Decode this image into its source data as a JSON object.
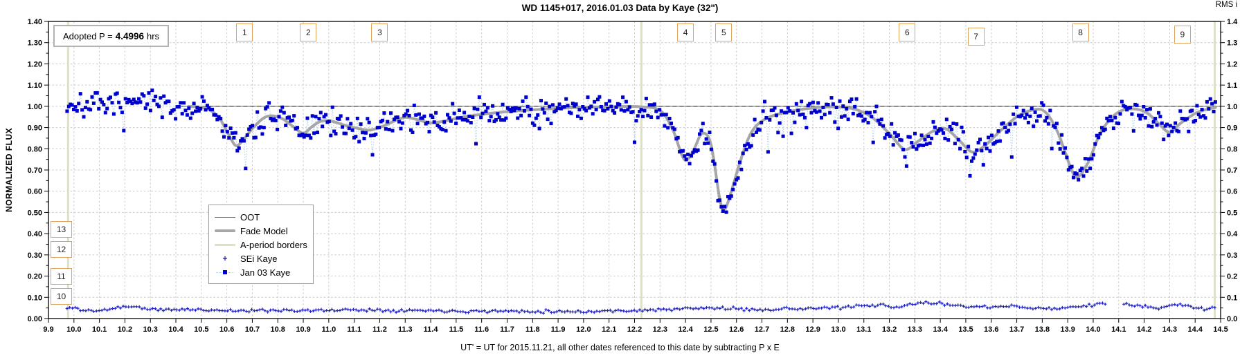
{
  "chart_data": {
    "type": "scatter",
    "title": "WD 1145+017, 2016.01.03 Data by Kaye (32\")",
    "xlabel": "UT' = UT for 2015.11.21, all other dates referenced to this date by subtracting P x E",
    "ylabel": "NORMALIZED FLUX",
    "y2label": "RMS i",
    "x_range": [
      9.9,
      14.5
    ],
    "y_range": [
      0.0,
      1.4
    ],
    "grid": "dashed",
    "legend_position": "inside-left-middle",
    "ticks": {
      "x_labels": [
        "9.9",
        "10.0",
        "10.1",
        "10.2",
        "10.3",
        "10.4",
        "10.5",
        "10.6",
        "10.7",
        "10.8",
        "10.9",
        "11.0",
        "11.1",
        "11.2",
        "11.3",
        "11.4",
        "11.5",
        "11.6",
        "11.7",
        "11.8",
        "11.9",
        "12.0",
        "12.1",
        "12.2",
        "12.3",
        "12.4",
        "12.5",
        "12.6",
        "12.7",
        "12.8",
        "12.9",
        "13.0",
        "13.1",
        "13.2",
        "13.3",
        "13.4",
        "13.5",
        "13.6",
        "13.7",
        "13.8",
        "13.9",
        "14.0",
        "14.1",
        "14.2",
        "14.3",
        "14.4",
        "14.5"
      ],
      "y_left_labels": [
        "0.00",
        "0.10",
        "0.20",
        "0.30",
        "0.40",
        "0.50",
        "0.60",
        "0.70",
        "0.80",
        "0.90",
        "1.00",
        "1.10",
        "1.20",
        "1.30",
        "1.40"
      ],
      "y_right_labels": [
        "0.0",
        "0.1",
        "0.2",
        "0.3",
        "0.4",
        "0.5",
        "0.6",
        "0.7",
        "0.8",
        "0.9",
        "1.0",
        "1.1",
        "1.2",
        "1.3",
        "1.4"
      ]
    },
    "series": [
      {
        "name": "OOT",
        "type": "line",
        "color": "#8c8c8c",
        "overlay_dash_color": "#3d3d3d",
        "points": [
          [
            10.42,
            1.0
          ],
          [
            14.5,
            1.0
          ]
        ]
      },
      {
        "name": "Fade Model",
        "type": "smooth-line",
        "color": "#a6a6a6",
        "width": 4,
        "points": [
          [
            10.45,
            1.0
          ],
          [
            10.52,
            0.99
          ],
          [
            10.57,
            0.945
          ],
          [
            10.61,
            0.86
          ],
          [
            10.635,
            0.815
          ],
          [
            10.66,
            0.835
          ],
          [
            10.7,
            0.895
          ],
          [
            10.745,
            0.945
          ],
          [
            10.78,
            0.955
          ],
          [
            10.82,
            0.94
          ],
          [
            10.86,
            0.905
          ],
          [
            10.9,
            0.873
          ],
          [
            10.935,
            0.905
          ],
          [
            10.97,
            0.93
          ],
          [
            11.01,
            0.93
          ],
          [
            11.06,
            0.912
          ],
          [
            11.11,
            0.897
          ],
          [
            11.16,
            0.888
          ],
          [
            11.21,
            0.905
          ],
          [
            11.26,
            0.932
          ],
          [
            11.3,
            0.948
          ],
          [
            11.345,
            0.938
          ],
          [
            11.4,
            0.922
          ],
          [
            11.46,
            0.932
          ],
          [
            11.52,
            0.948
          ],
          [
            11.6,
            0.962
          ],
          [
            11.7,
            0.975
          ],
          [
            11.82,
            0.985
          ],
          [
            11.95,
            0.993
          ],
          [
            12.1,
            0.998
          ],
          [
            12.22,
            0.998
          ],
          [
            12.3,
            0.98
          ],
          [
            12.35,
            0.89
          ],
          [
            12.395,
            0.75
          ],
          [
            12.43,
            0.79
          ],
          [
            12.465,
            0.872
          ],
          [
            12.5,
            0.82
          ],
          [
            12.535,
            0.56
          ],
          [
            12.555,
            0.518
          ],
          [
            12.58,
            0.6
          ],
          [
            12.62,
            0.76
          ],
          [
            12.66,
            0.88
          ],
          [
            12.71,
            0.938
          ],
          [
            12.78,
            0.968
          ],
          [
            12.87,
            0.988
          ],
          [
            12.97,
            0.998
          ],
          [
            13.06,
            0.988
          ],
          [
            13.13,
            0.95
          ],
          [
            13.2,
            0.872
          ],
          [
            13.26,
            0.797
          ],
          [
            13.31,
            0.833
          ],
          [
            13.37,
            0.882
          ],
          [
            13.42,
            0.895
          ],
          [
            13.47,
            0.845
          ],
          [
            13.525,
            0.785
          ],
          [
            13.575,
            0.815
          ],
          [
            13.63,
            0.878
          ],
          [
            13.7,
            0.95
          ],
          [
            13.76,
            0.982
          ],
          [
            13.81,
            0.975
          ],
          [
            13.86,
            0.88
          ],
          [
            13.915,
            0.7
          ],
          [
            13.94,
            0.668
          ],
          [
            13.98,
            0.735
          ],
          [
            14.03,
            0.878
          ],
          [
            14.09,
            0.965
          ],
          [
            14.15,
            0.988
          ],
          [
            14.21,
            0.97
          ],
          [
            14.26,
            0.915
          ],
          [
            14.3,
            0.878
          ],
          [
            14.345,
            0.922
          ],
          [
            14.41,
            0.972
          ],
          [
            14.48,
            0.995
          ]
        ]
      },
      {
        "name": "A-period borders",
        "type": "vlines",
        "color": "#dde3bd",
        "width": 3,
        "x": [
          9.977,
          12.227,
          14.477
        ]
      },
      {
        "name": "SEi Kaye",
        "type": "scatter-plus",
        "color": "#2020bf",
        "connector_color": "#8093d8",
        "noise": {
          "seed": 11,
          "sigma": 0.0035,
          "step": 0.0105
        },
        "x_start": 9.973,
        "x_end": 14.48,
        "gaps": [
          [
            14.055,
            14.115
          ]
        ],
        "anchors": [
          [
            9.973,
            0.046
          ],
          [
            10.0,
            0.052
          ],
          [
            10.04,
            0.038
          ],
          [
            10.1,
            0.036
          ],
          [
            10.16,
            0.05
          ],
          [
            10.21,
            0.058
          ],
          [
            10.27,
            0.05
          ],
          [
            10.33,
            0.04
          ],
          [
            10.42,
            0.043
          ],
          [
            10.55,
            0.04
          ],
          [
            10.68,
            0.036
          ],
          [
            10.8,
            0.04
          ],
          [
            10.95,
            0.037
          ],
          [
            11.1,
            0.042
          ],
          [
            11.25,
            0.039
          ],
          [
            11.4,
            0.038
          ],
          [
            11.55,
            0.035
          ],
          [
            11.7,
            0.035
          ],
          [
            11.85,
            0.034
          ],
          [
            12.0,
            0.033
          ],
          [
            12.15,
            0.037
          ],
          [
            12.3,
            0.041
          ],
          [
            12.42,
            0.047
          ],
          [
            12.52,
            0.05
          ],
          [
            12.65,
            0.042
          ],
          [
            12.8,
            0.046
          ],
          [
            12.95,
            0.049
          ],
          [
            13.1,
            0.058
          ],
          [
            13.17,
            0.063
          ],
          [
            13.22,
            0.05
          ],
          [
            13.3,
            0.07
          ],
          [
            13.35,
            0.076
          ],
          [
            13.42,
            0.066
          ],
          [
            13.5,
            0.06
          ],
          [
            13.6,
            0.052
          ],
          [
            13.7,
            0.058
          ],
          [
            13.8,
            0.046
          ],
          [
            13.9,
            0.051
          ],
          [
            13.97,
            0.06
          ],
          [
            14.02,
            0.07
          ],
          [
            14.05,
            0.067
          ],
          [
            14.12,
            0.062
          ],
          [
            14.17,
            0.064
          ],
          [
            14.23,
            0.051
          ],
          [
            14.28,
            0.05
          ],
          [
            14.32,
            0.068
          ],
          [
            14.36,
            0.06
          ],
          [
            14.41,
            0.05
          ],
          [
            14.45,
            0.047
          ],
          [
            14.48,
            0.052
          ]
        ]
      },
      {
        "name": "Jan 03 Kaye",
        "type": "scatter-square",
        "color": "#0000cd",
        "connector_color": "#aecbea",
        "noise": {
          "seed": 7,
          "sigma": 0.031,
          "step": 0.00655,
          "outlier_p": 0.028
        },
        "x_start": 9.973,
        "x_end": 14.48,
        "y_clamp": [
          0.43,
          1.135
        ],
        "center_anchors": [
          [
            9.973,
            1.005
          ],
          [
            10.03,
            1.012
          ],
          [
            10.1,
            0.998
          ],
          [
            10.17,
            1.012
          ],
          [
            10.25,
            1.006
          ],
          [
            10.33,
            1.01
          ],
          [
            10.4,
            1.0
          ],
          [
            10.45,
            1.0
          ],
          [
            10.52,
            0.99
          ],
          [
            10.57,
            0.945
          ],
          [
            10.61,
            0.86
          ],
          [
            10.635,
            0.815
          ],
          [
            10.66,
            0.835
          ],
          [
            10.7,
            0.895
          ],
          [
            10.745,
            0.945
          ],
          [
            10.78,
            0.955
          ],
          [
            10.82,
            0.94
          ],
          [
            10.86,
            0.905
          ],
          [
            10.9,
            0.873
          ],
          [
            10.935,
            0.905
          ],
          [
            10.97,
            0.93
          ],
          [
            11.01,
            0.93
          ],
          [
            11.06,
            0.912
          ],
          [
            11.11,
            0.897
          ],
          [
            11.16,
            0.888
          ],
          [
            11.21,
            0.905
          ],
          [
            11.26,
            0.932
          ],
          [
            11.3,
            0.948
          ],
          [
            11.345,
            0.938
          ],
          [
            11.4,
            0.922
          ],
          [
            11.46,
            0.932
          ],
          [
            11.52,
            0.948
          ],
          [
            11.6,
            0.962
          ],
          [
            11.7,
            0.975
          ],
          [
            11.82,
            0.985
          ],
          [
            11.95,
            0.993
          ],
          [
            12.1,
            0.998
          ],
          [
            12.22,
            0.998
          ],
          [
            12.3,
            0.98
          ],
          [
            12.35,
            0.89
          ],
          [
            12.395,
            0.75
          ],
          [
            12.43,
            0.79
          ],
          [
            12.465,
            0.872
          ],
          [
            12.5,
            0.82
          ],
          [
            12.535,
            0.56
          ],
          [
            12.555,
            0.518
          ],
          [
            12.58,
            0.6
          ],
          [
            12.62,
            0.76
          ],
          [
            12.66,
            0.88
          ],
          [
            12.71,
            0.938
          ],
          [
            12.78,
            0.968
          ],
          [
            12.87,
            0.988
          ],
          [
            12.97,
            0.998
          ],
          [
            13.06,
            0.988
          ],
          [
            13.13,
            0.95
          ],
          [
            13.2,
            0.872
          ],
          [
            13.26,
            0.797
          ],
          [
            13.31,
            0.833
          ],
          [
            13.37,
            0.882
          ],
          [
            13.42,
            0.895
          ],
          [
            13.47,
            0.845
          ],
          [
            13.525,
            0.785
          ],
          [
            13.575,
            0.815
          ],
          [
            13.63,
            0.878
          ],
          [
            13.7,
            0.95
          ],
          [
            13.76,
            0.982
          ],
          [
            13.81,
            0.975
          ],
          [
            13.86,
            0.88
          ],
          [
            13.915,
            0.7
          ],
          [
            13.94,
            0.668
          ],
          [
            13.98,
            0.735
          ],
          [
            14.03,
            0.878
          ],
          [
            14.09,
            0.965
          ],
          [
            14.15,
            0.988
          ],
          [
            14.21,
            0.97
          ],
          [
            14.26,
            0.915
          ],
          [
            14.3,
            0.878
          ],
          [
            14.345,
            0.922
          ],
          [
            14.41,
            0.972
          ],
          [
            14.48,
            0.995
          ]
        ]
      }
    ]
  },
  "annotations": {
    "adopted_p": {
      "prefix": "Adopted P =",
      "value": "4.4996",
      "suffix": "hrs"
    },
    "top_boxes": [
      {
        "label": "1",
        "x": 10.67,
        "dy": 0
      },
      {
        "label": "2",
        "x": 10.92,
        "dy": 0
      },
      {
        "label": "3",
        "x": 11.2,
        "dy": 0
      },
      {
        "label": "4",
        "x": 12.4,
        "dy": 0
      },
      {
        "label": "5",
        "x": 12.55,
        "dy": 0
      },
      {
        "label": "6",
        "x": 13.27,
        "dy": 0
      },
      {
        "label": "7",
        "x": 13.54,
        "dy": 6
      },
      {
        "label": "8",
        "x": 13.95,
        "dy": 0
      },
      {
        "label": "9",
        "x": 14.35,
        "dy": 3
      }
    ],
    "side_boxes": [
      {
        "label": "13",
        "flux": 0.42
      },
      {
        "label": "12",
        "flux": 0.325
      },
      {
        "label": "11",
        "flux": 0.2
      },
      {
        "label": "10",
        "flux": 0.105
      }
    ]
  },
  "colors": {
    "grid": "#c9c9c9",
    "axis": "#000000",
    "emphasized_unity_line": "#3d3d3d",
    "annotation_border": "#e0a35a",
    "adopted_border": "#b2b2b2"
  }
}
